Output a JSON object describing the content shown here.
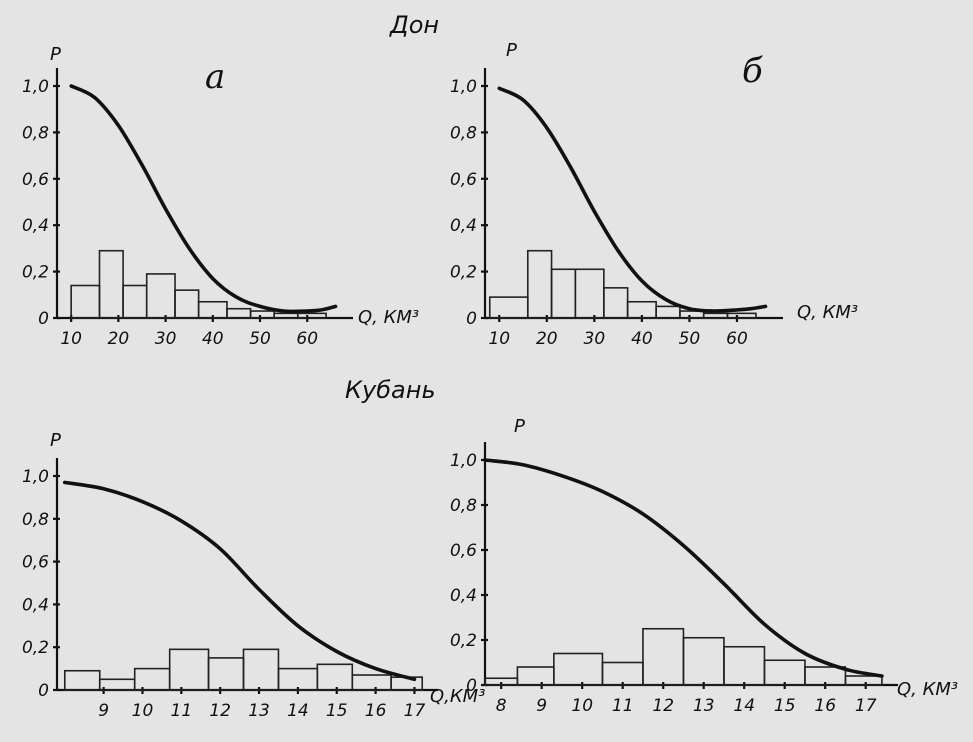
{
  "titles": {
    "top": "Дон",
    "bottom": "Кубань"
  },
  "chart_data": [
    {
      "id": "don-a",
      "type": "bar",
      "panel_label": "а",
      "ylabel": "P",
      "xlabel": "Q, КМ³",
      "xlim": [
        7,
        68
      ],
      "ylim": [
        0,
        1.0
      ],
      "xticks": [
        10,
        20,
        30,
        40,
        50,
        60
      ],
      "yticks": [
        0,
        0.2,
        0.4,
        0.6,
        0.8,
        1.0
      ],
      "ytick_labels": [
        "0",
        "0,2",
        "0,4",
        "0,6",
        "0,8",
        "1,0"
      ],
      "bins": [
        {
          "x0": 10,
          "x1": 16,
          "value": 0.14
        },
        {
          "x0": 16,
          "x1": 21,
          "value": 0.29
        },
        {
          "x0": 21,
          "x1": 26,
          "value": 0.14
        },
        {
          "x0": 26,
          "x1": 32,
          "value": 0.19
        },
        {
          "x0": 32,
          "x1": 37,
          "value": 0.12
        },
        {
          "x0": 37,
          "x1": 43,
          "value": 0.07
        },
        {
          "x0": 43,
          "x1": 48,
          "value": 0.04
        },
        {
          "x0": 48,
          "x1": 53,
          "value": 0.03
        },
        {
          "x0": 53,
          "x1": 58,
          "value": 0.02
        },
        {
          "x0": 58,
          "x1": 64,
          "value": 0.02
        }
      ],
      "curve": {
        "x": [
          10,
          15,
          20,
          25,
          30,
          35,
          40,
          45,
          50,
          55,
          60,
          63,
          66
        ],
        "y": [
          1.0,
          0.95,
          0.83,
          0.66,
          0.47,
          0.3,
          0.17,
          0.09,
          0.05,
          0.03,
          0.03,
          0.035,
          0.05
        ]
      }
    },
    {
      "id": "don-b",
      "type": "bar",
      "panel_label": "б",
      "ylabel": "P",
      "xlabel": "Q, КМ³",
      "xlim": [
        7,
        68
      ],
      "ylim": [
        0,
        1.0
      ],
      "xticks": [
        10,
        20,
        30,
        40,
        50,
        60
      ],
      "yticks": [
        0,
        0.2,
        0.4,
        0.6,
        0.8,
        1.0
      ],
      "ytick_labels": [
        "0",
        "0,2",
        "0,4",
        "0,6",
        "0,8",
        "1,0"
      ],
      "bins": [
        {
          "x0": 8,
          "x1": 16,
          "value": 0.09
        },
        {
          "x0": 16,
          "x1": 21,
          "value": 0.29
        },
        {
          "x0": 21,
          "x1": 26,
          "value": 0.21
        },
        {
          "x0": 26,
          "x1": 32,
          "value": 0.21
        },
        {
          "x0": 32,
          "x1": 37,
          "value": 0.13
        },
        {
          "x0": 37,
          "x1": 43,
          "value": 0.07
        },
        {
          "x0": 43,
          "x1": 48,
          "value": 0.05
        },
        {
          "x0": 48,
          "x1": 53,
          "value": 0.03
        },
        {
          "x0": 53,
          "x1": 58,
          "value": 0.02
        },
        {
          "x0": 58,
          "x1": 64,
          "value": 0.02
        }
      ],
      "curve": {
        "x": [
          10,
          15,
          20,
          25,
          30,
          35,
          40,
          45,
          50,
          55,
          60,
          63,
          66
        ],
        "y": [
          0.99,
          0.94,
          0.82,
          0.65,
          0.46,
          0.29,
          0.16,
          0.08,
          0.04,
          0.03,
          0.035,
          0.04,
          0.05
        ]
      }
    },
    {
      "id": "kuban-1",
      "type": "bar",
      "panel_label": "",
      "ylabel": "P",
      "xlabel": "Q,КМ³",
      "xlim": [
        7.8,
        17.4
      ],
      "ylim": [
        0,
        1.0
      ],
      "xticks": [
        9,
        10,
        11,
        12,
        13,
        14,
        15,
        16,
        17
      ],
      "yticks": [
        0,
        0.2,
        0.4,
        0.6,
        0.8,
        1.0
      ],
      "ytick_labels": [
        "0",
        "0,2",
        "0,4",
        "0,6",
        "0,8",
        "1,0"
      ],
      "bins": [
        {
          "x0": 8.0,
          "x1": 8.9,
          "value": 0.09
        },
        {
          "x0": 8.9,
          "x1": 9.8,
          "value": 0.05
        },
        {
          "x0": 9.8,
          "x1": 10.7,
          "value": 0.1
        },
        {
          "x0": 10.7,
          "x1": 11.7,
          "value": 0.19
        },
        {
          "x0": 11.7,
          "x1": 12.6,
          "value": 0.15
        },
        {
          "x0": 12.6,
          "x1": 13.5,
          "value": 0.19
        },
        {
          "x0": 13.5,
          "x1": 14.5,
          "value": 0.1
        },
        {
          "x0": 14.5,
          "x1": 15.4,
          "value": 0.12
        },
        {
          "x0": 15.4,
          "x1": 16.4,
          "value": 0.07
        },
        {
          "x0": 16.4,
          "x1": 17.2,
          "value": 0.06
        }
      ],
      "curve": {
        "x": [
          8.0,
          9.0,
          10.0,
          11.0,
          12.0,
          13.0,
          14.0,
          15.0,
          16.0,
          17.0
        ],
        "y": [
          0.97,
          0.94,
          0.88,
          0.79,
          0.66,
          0.47,
          0.3,
          0.18,
          0.1,
          0.05
        ]
      }
    },
    {
      "id": "kuban-2",
      "type": "bar",
      "panel_label": "",
      "ylabel": "P",
      "xlabel": "Q, КМ³",
      "xlim": [
        7.6,
        17.6
      ],
      "ylim": [
        0,
        1.0
      ],
      "xticks": [
        8,
        9,
        10,
        11,
        12,
        13,
        14,
        15,
        16,
        17
      ],
      "yticks": [
        0,
        0.2,
        0.4,
        0.6,
        0.8,
        1.0
      ],
      "ytick_labels": [
        "0",
        "0,2",
        "0,4",
        "0,6",
        "0,8",
        "1,0"
      ],
      "bins": [
        {
          "x0": 7.6,
          "x1": 8.4,
          "value": 0.03
        },
        {
          "x0": 8.4,
          "x1": 9.3,
          "value": 0.08
        },
        {
          "x0": 9.3,
          "x1": 10.5,
          "value": 0.14
        },
        {
          "x0": 10.5,
          "x1": 11.5,
          "value": 0.1
        },
        {
          "x0": 11.5,
          "x1": 12.5,
          "value": 0.25
        },
        {
          "x0": 12.5,
          "x1": 13.5,
          "value": 0.21
        },
        {
          "x0": 13.5,
          "x1": 14.5,
          "value": 0.17
        },
        {
          "x0": 14.5,
          "x1": 15.5,
          "value": 0.11
        },
        {
          "x0": 15.5,
          "x1": 16.5,
          "value": 0.08
        },
        {
          "x0": 16.5,
          "x1": 17.4,
          "value": 0.04
        }
      ],
      "curve": {
        "x": [
          7.6,
          8.5,
          9.5,
          10.5,
          11.5,
          12.5,
          13.5,
          14.5,
          15.5,
          16.5,
          17.4
        ],
        "y": [
          1.0,
          0.98,
          0.93,
          0.86,
          0.76,
          0.62,
          0.45,
          0.27,
          0.14,
          0.07,
          0.04
        ]
      }
    }
  ]
}
